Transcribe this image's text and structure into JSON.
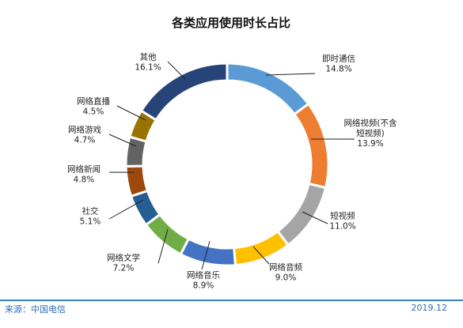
{
  "chart_data": {
    "type": "pie",
    "title": "各类应用使用时长占比",
    "style": "donut",
    "legend": "none",
    "unit": "%",
    "slices": [
      {
        "name": "即时通信",
        "value": 14.8,
        "value_label": "14.8%",
        "color": "#5b9bd5"
      },
      {
        "name": "网络视频(不含短视频)",
        "name_lines": [
          "网络视频(不含",
          "短视频)"
        ],
        "value": 13.9,
        "value_label": "13.9%",
        "color": "#ed7d31"
      },
      {
        "name": "短视频",
        "value": 11.0,
        "value_label": "11.0%",
        "color": "#a5a5a5"
      },
      {
        "name": "网络音频",
        "value": 9.0,
        "value_label": "9.0%",
        "color": "#ffc000"
      },
      {
        "name": "网络音乐",
        "value": 8.9,
        "value_label": "8.9%",
        "color": "#4472c4"
      },
      {
        "name": "网络文学",
        "value": 7.2,
        "value_label": "7.2%",
        "color": "#70ad47"
      },
      {
        "name": "社交",
        "value": 5.1,
        "value_label": "5.1%",
        "color": "#255e91"
      },
      {
        "name": "网络新闻",
        "value": 4.8,
        "value_label": "4.8%",
        "color": "#9e480e"
      },
      {
        "name": "网络游戏",
        "value": 4.7,
        "value_label": "4.7%",
        "color": "#636363"
      },
      {
        "name": "网络直播",
        "value": 4.5,
        "value_label": "4.5%",
        "color": "#997300"
      },
      {
        "name": "其他",
        "value": 16.1,
        "value_label": "16.1%",
        "color": "#264478"
      }
    ]
  },
  "footer": {
    "source": "来源：中国电信",
    "date": "2019.12"
  }
}
